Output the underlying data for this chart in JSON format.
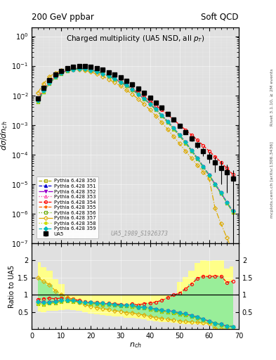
{
  "title_left": "200 GeV ppbar",
  "title_right": "Soft QCD",
  "plot_title": "Charged multiplicity (UA5 NSD, all p_{T})",
  "xlabel": "n_{ch}",
  "ylabel_main": "dσ/dn_{ch}",
  "ylabel_ratio": "Ratio to UA5",
  "watermark": "UA5_1989_S1926373",
  "ua5_x": [
    2,
    4,
    6,
    8,
    10,
    12,
    14,
    16,
    18,
    20,
    22,
    24,
    26,
    28,
    30,
    32,
    34,
    36,
    38,
    40,
    42,
    44,
    46,
    48,
    50,
    52,
    54,
    56,
    58,
    60,
    62,
    64,
    66,
    68
  ],
  "ua5_y": [
    0.008,
    0.018,
    0.033,
    0.052,
    0.068,
    0.082,
    0.091,
    0.098,
    0.098,
    0.093,
    0.084,
    0.073,
    0.061,
    0.05,
    0.04,
    0.031,
    0.023,
    0.017,
    0.012,
    0.0085,
    0.0058,
    0.0038,
    0.0024,
    0.0015,
    0.00095,
    0.00058,
    0.00035,
    0.00021,
    0.00013,
    8.5e-05,
    5.5e-05,
    3.5e-05,
    2.5e-05,
    1.5e-05
  ],
  "ua5_yerr": [
    0.001,
    0.002,
    0.003,
    0.004,
    0.004,
    0.005,
    0.005,
    0.005,
    0.005,
    0.005,
    0.004,
    0.004,
    0.003,
    0.003,
    0.003,
    0.002,
    0.002,
    0.001,
    0.001,
    0.0008,
    0.0005,
    0.0004,
    0.0003,
    0.0002,
    0.00015,
    0.0001,
    7e-05,
    5e-05,
    4e-05,
    3.5e-05,
    3e-05,
    2.5e-05,
    2e-05,
    1.5e-05
  ],
  "series": [
    {
      "label": "Pythia 6.428 350",
      "color": "#aaaa00",
      "marker": "s",
      "fillstyle": "none",
      "linestyle": "--"
    },
    {
      "label": "Pythia 6.428 351",
      "color": "#0000cc",
      "marker": "^",
      "fillstyle": "full",
      "linestyle": "--"
    },
    {
      "label": "Pythia 6.428 352",
      "color": "#9900cc",
      "marker": "v",
      "fillstyle": "full",
      "linestyle": "-."
    },
    {
      "label": "Pythia 6.428 353",
      "color": "#ff44aa",
      "marker": "^",
      "fillstyle": "none",
      "linestyle": ":"
    },
    {
      "label": "Pythia 6.428 354",
      "color": "#ff0000",
      "marker": "o",
      "fillstyle": "none",
      "linestyle": "--"
    },
    {
      "label": "Pythia 6.428 355",
      "color": "#ff6600",
      "marker": "*",
      "fillstyle": "full",
      "linestyle": "--"
    },
    {
      "label": "Pythia 6.428 356",
      "color": "#66aa00",
      "marker": "s",
      "fillstyle": "none",
      "linestyle": ":"
    },
    {
      "label": "Pythia 6.428 357",
      "color": "#ddaa00",
      "marker": "D",
      "fillstyle": "none",
      "linestyle": "-."
    },
    {
      "label": "Pythia 6.428 358",
      "color": "#ccdd00",
      "marker": "p",
      "fillstyle": "full",
      "linestyle": ":"
    },
    {
      "label": "Pythia 6.428 359",
      "color": "#00bbbb",
      "marker": "D",
      "fillstyle": "full",
      "linestyle": "--"
    }
  ],
  "pythia_x": [
    2,
    4,
    6,
    8,
    10,
    12,
    14,
    16,
    18,
    20,
    22,
    24,
    26,
    28,
    30,
    32,
    34,
    36,
    38,
    40,
    42,
    44,
    46,
    48,
    50,
    52,
    54,
    56,
    58,
    60,
    62,
    64,
    66,
    68
  ],
  "pythia_350_y": [
    0.006,
    0.013,
    0.025,
    0.04,
    0.055,
    0.067,
    0.074,
    0.077,
    0.075,
    0.07,
    0.062,
    0.053,
    0.044,
    0.035,
    0.027,
    0.021,
    0.015,
    0.011,
    0.0075,
    0.005,
    0.0032,
    0.002,
    0.0012,
    0.00072,
    0.00042,
    0.00024,
    0.00013,
    7e-05,
    3.7e-05,
    1.9e-05,
    9.5e-06,
    4.7e-06,
    2.3e-06,
    1.1e-06
  ],
  "pythia_351_y": [
    0.0065,
    0.014,
    0.026,
    0.042,
    0.057,
    0.069,
    0.076,
    0.079,
    0.077,
    0.072,
    0.064,
    0.055,
    0.045,
    0.036,
    0.028,
    0.022,
    0.016,
    0.011,
    0.0078,
    0.0052,
    0.0034,
    0.0021,
    0.0013,
    0.00078,
    0.00045,
    0.00026,
    0.00014,
    7.5e-05,
    3.9e-05,
    2e-05,
    1e-05,
    5e-06,
    2.4e-06,
    1.2e-06
  ],
  "pythia_352_y": [
    0.0065,
    0.014,
    0.026,
    0.042,
    0.057,
    0.069,
    0.076,
    0.079,
    0.077,
    0.072,
    0.064,
    0.055,
    0.045,
    0.036,
    0.028,
    0.022,
    0.016,
    0.011,
    0.0078,
    0.0052,
    0.0034,
    0.0021,
    0.0013,
    0.00078,
    0.00045,
    0.00026,
    0.00014,
    7.5e-05,
    3.9e-05,
    2e-05,
    1e-05,
    5e-06,
    2.4e-06,
    1.2e-06
  ],
  "pythia_353_y": [
    0.0065,
    0.014,
    0.026,
    0.042,
    0.057,
    0.069,
    0.076,
    0.079,
    0.077,
    0.072,
    0.064,
    0.055,
    0.045,
    0.036,
    0.028,
    0.022,
    0.016,
    0.011,
    0.0078,
    0.0052,
    0.0034,
    0.0021,
    0.0013,
    0.00078,
    0.00045,
    0.00026,
    0.00014,
    7.5e-05,
    3.9e-05,
    2e-05,
    1e-05,
    5e-06,
    2.4e-06,
    1.2e-06
  ],
  "pythia_354_y": [
    0.007,
    0.016,
    0.03,
    0.046,
    0.062,
    0.074,
    0.08,
    0.082,
    0.079,
    0.073,
    0.065,
    0.055,
    0.046,
    0.037,
    0.029,
    0.022,
    0.017,
    0.012,
    0.009,
    0.0065,
    0.0046,
    0.0032,
    0.0022,
    0.0015,
    0.001,
    0.00068,
    0.00046,
    0.00031,
    0.0002,
    0.00013,
    8.5e-05,
    5.4e-05,
    3.4e-05,
    2.1e-05
  ],
  "pythia_355_y": [
    0.0065,
    0.014,
    0.026,
    0.042,
    0.057,
    0.069,
    0.076,
    0.079,
    0.077,
    0.072,
    0.064,
    0.055,
    0.045,
    0.036,
    0.028,
    0.022,
    0.016,
    0.011,
    0.0078,
    0.0052,
    0.0034,
    0.0021,
    0.0013,
    0.00078,
    0.00045,
    0.00026,
    0.00014,
    7.5e-05,
    3.9e-05,
    2e-05,
    1e-05,
    5e-06,
    2.4e-06,
    1.2e-06
  ],
  "pythia_356_y": [
    0.006,
    0.013,
    0.025,
    0.04,
    0.055,
    0.067,
    0.074,
    0.077,
    0.075,
    0.07,
    0.062,
    0.053,
    0.044,
    0.035,
    0.027,
    0.021,
    0.015,
    0.011,
    0.0075,
    0.005,
    0.0032,
    0.002,
    0.0012,
    0.00072,
    0.00042,
    0.00024,
    0.00013,
    7e-05,
    3.7e-05,
    1.9e-05,
    9.5e-06,
    4.7e-06,
    2.3e-06,
    1.1e-06
  ],
  "pythia_357_y": [
    0.012,
    0.025,
    0.043,
    0.058,
    0.069,
    0.076,
    0.078,
    0.076,
    0.07,
    0.062,
    0.053,
    0.044,
    0.035,
    0.027,
    0.021,
    0.015,
    0.011,
    0.0075,
    0.005,
    0.0032,
    0.002,
    0.0012,
    0.0007,
    0.0004,
    0.00023,
    0.00013,
    7.5e-05,
    4.3e-05,
    2.5e-05,
    1.5e-05,
    1.5e-06,
    4.5e-07,
    1.5e-07,
    5e-08
  ],
  "pythia_358_y": [
    0.006,
    0.013,
    0.025,
    0.04,
    0.055,
    0.067,
    0.074,
    0.077,
    0.075,
    0.07,
    0.062,
    0.053,
    0.044,
    0.035,
    0.027,
    0.021,
    0.015,
    0.011,
    0.0075,
    0.005,
    0.0032,
    0.002,
    0.0012,
    0.00072,
    0.00042,
    0.00024,
    0.00013,
    7e-05,
    3.7e-05,
    1.9e-05,
    9.5e-06,
    4.7e-06,
    2.3e-06,
    1.1e-06
  ],
  "pythia_359_y": [
    0.0065,
    0.014,
    0.026,
    0.042,
    0.057,
    0.069,
    0.076,
    0.079,
    0.077,
    0.072,
    0.064,
    0.055,
    0.045,
    0.036,
    0.028,
    0.022,
    0.016,
    0.011,
    0.0078,
    0.0052,
    0.0034,
    0.0021,
    0.0013,
    0.00078,
    0.00045,
    0.00026,
    0.00014,
    7.5e-05,
    3.9e-05,
    2e-05,
    1e-05,
    5e-06,
    2.4e-06,
    1.2e-06
  ],
  "ylim_main": [
    1e-07,
    2.0
  ],
  "ylim_ratio": [
    0.0,
    2.5
  ],
  "xlim": [
    0,
    70
  ],
  "ratio_yticks": [
    0.5,
    1.0,
    1.5,
    2.0
  ],
  "band1_color": "#ffff88",
  "band2_color": "#99ee99",
  "bg_color": "#e0e0e0"
}
